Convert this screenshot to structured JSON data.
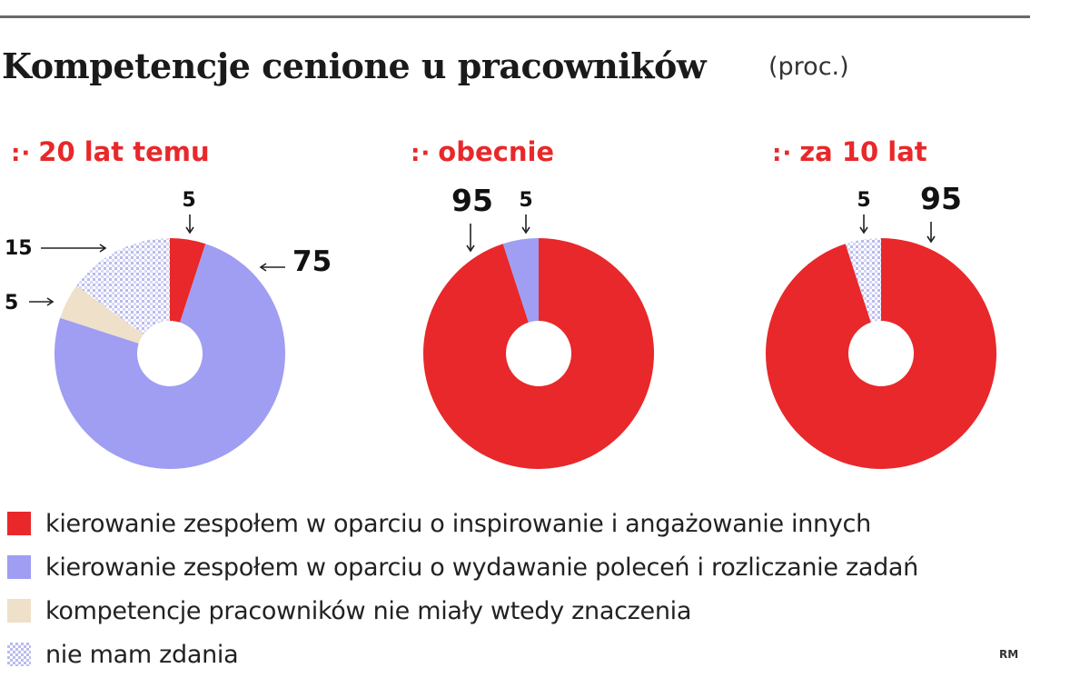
{
  "title": "Kompetencje cenione u pracowników",
  "title_unit": "(proc.)",
  "credit": "RM",
  "colors": {
    "inspire": "#e8282a",
    "command": "#9f9ef2",
    "no_matter": "#efe0ca",
    "no_opinion": "#c7c9f1",
    "panel_title": "#e8282a"
  },
  "legend": [
    {
      "key": "inspire",
      "label": "kierowanie zespołem w oparciu o inspirowanie i angażowanie innych"
    },
    {
      "key": "command",
      "label": "kierowanie zespołem w oparciu o wydawanie poleceń i rozliczanie zadań"
    },
    {
      "key": "no_matter",
      "label": "kompetencje pracowników nie miały wtedy znaczenia"
    },
    {
      "key": "no_opinion",
      "label": "nie mam zdania"
    }
  ],
  "chart_data": [
    {
      "type": "pie",
      "title": "20 lat temu",
      "slices": [
        {
          "key": "inspire",
          "value": 5,
          "label": "5"
        },
        {
          "key": "command",
          "value": 75,
          "label": "75"
        },
        {
          "key": "no_matter",
          "value": 5,
          "label": "5"
        },
        {
          "key": "no_opinion",
          "value": 15,
          "label": "15"
        }
      ]
    },
    {
      "type": "pie",
      "title": "obecnie",
      "slices": [
        {
          "key": "inspire",
          "value": 95,
          "label": "95"
        },
        {
          "key": "command",
          "value": 5,
          "label": "5"
        }
      ]
    },
    {
      "type": "pie",
      "title": "za 10 lat",
      "slices": [
        {
          "key": "inspire",
          "value": 95,
          "label": "95"
        },
        {
          "key": "no_opinion",
          "value": 5,
          "label": "5"
        }
      ]
    }
  ]
}
